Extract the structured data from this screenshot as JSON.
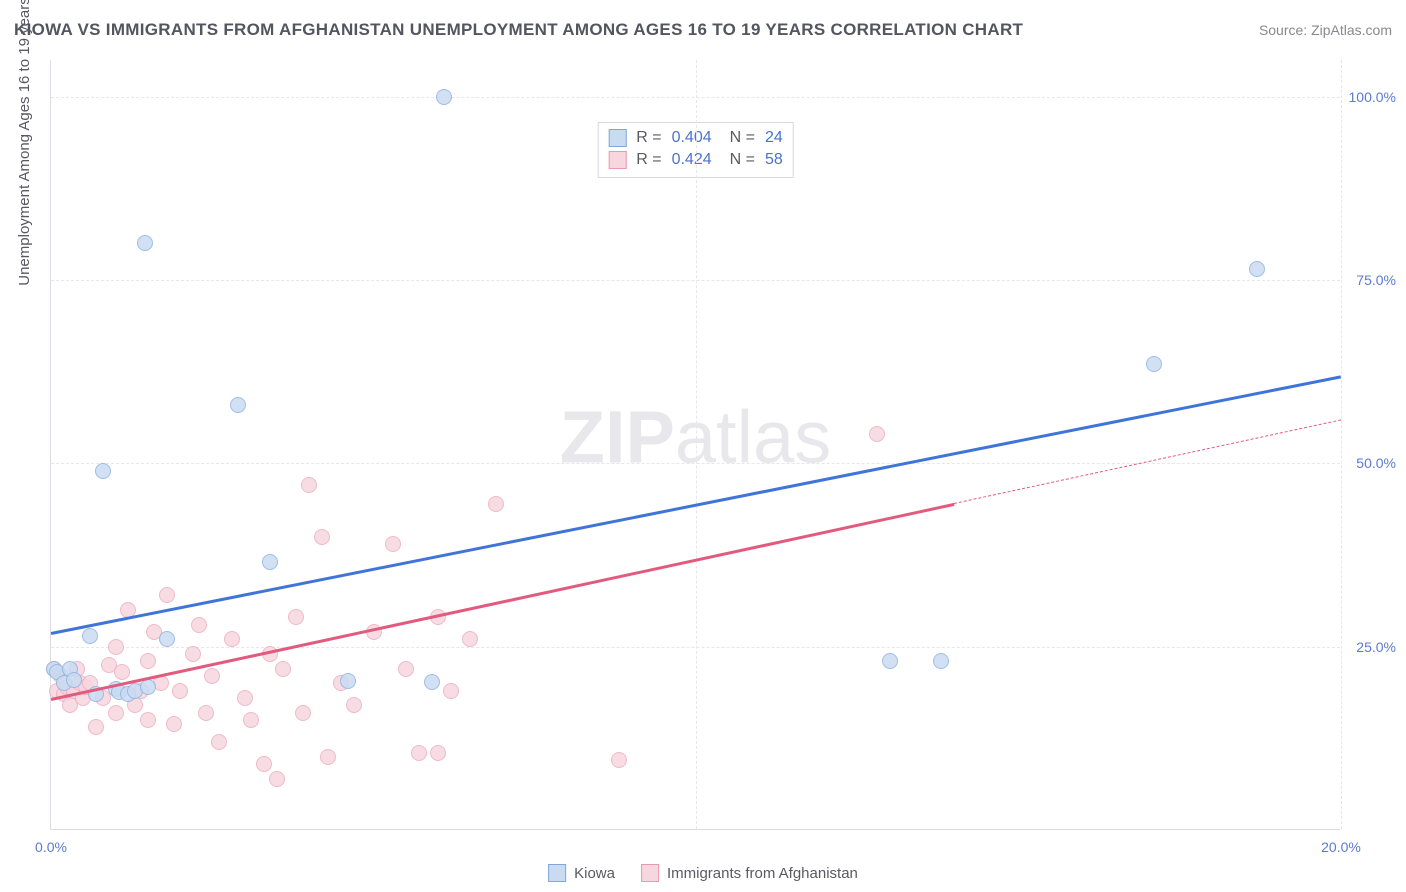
{
  "title": "KIOWA VS IMMIGRANTS FROM AFGHANISTAN UNEMPLOYMENT AMONG AGES 16 TO 19 YEARS CORRELATION CHART",
  "source_label": "Source: ZipAtlas.com",
  "y_axis_label": "Unemployment Among Ages 16 to 19 years",
  "watermark": {
    "bold": "ZIP",
    "light": "atlas"
  },
  "chart": {
    "type": "scatter",
    "background_color": "#ffffff",
    "grid_color": "#e6e6ec",
    "axis_color": "#dcdce2",
    "label_color": "#5a7bd4",
    "xlim": [
      0,
      20
    ],
    "ylim": [
      0,
      105
    ],
    "x_ticks": [
      0,
      10,
      20
    ],
    "x_tick_labels": [
      "0.0%",
      "",
      "20.0%"
    ],
    "y_ticks": [
      25,
      50,
      75,
      100
    ],
    "y_tick_labels": [
      "25.0%",
      "50.0%",
      "75.0%",
      "100.0%"
    ],
    "point_radius": 8,
    "point_stroke_width": 1.2
  },
  "series": [
    {
      "name": "Kiowa",
      "fill": "#c9dbf1",
      "stroke": "#8fb3e2",
      "legend_swatch_fill": "#c9dbf1",
      "legend_swatch_stroke": "#7ea8dc",
      "stats": {
        "R": "0.404",
        "N": "24"
      },
      "trend": {
        "x1": 0,
        "y1": 27,
        "x2": 20,
        "y2": 62,
        "color": "#3f74d8",
        "dash_after_x": null
      },
      "points": [
        [
          0.05,
          22
        ],
        [
          0.1,
          21.5
        ],
        [
          0.2,
          20
        ],
        [
          0.3,
          22
        ],
        [
          0.35,
          20.5
        ],
        [
          0.6,
          26.5
        ],
        [
          0.7,
          18.5
        ],
        [
          0.8,
          49
        ],
        [
          1.0,
          19.2
        ],
        [
          1.05,
          18.8
        ],
        [
          1.2,
          18.5
        ],
        [
          1.3,
          19
        ],
        [
          1.45,
          80
        ],
        [
          1.5,
          19.5
        ],
        [
          1.8,
          26
        ],
        [
          2.9,
          58
        ],
        [
          3.4,
          36.5
        ],
        [
          4.6,
          20.3
        ],
        [
          5.9,
          20.2
        ],
        [
          6.1,
          100
        ],
        [
          13.0,
          23
        ],
        [
          13.8,
          23
        ],
        [
          17.1,
          63.5
        ],
        [
          18.7,
          76.5
        ]
      ]
    },
    {
      "name": "Immigrants from Afghanistan",
      "fill": "#f7d6df",
      "stroke": "#ecaec0",
      "legend_swatch_fill": "#f7d6df",
      "legend_swatch_stroke": "#e89ab2",
      "stats": {
        "R": "0.424",
        "N": "58"
      },
      "trend": {
        "x1": 0,
        "y1": 18,
        "x2": 20,
        "y2": 56,
        "color": "#e25b7e",
        "dash_after_x": 14
      },
      "points": [
        [
          0.05,
          22
        ],
        [
          0.1,
          19
        ],
        [
          0.15,
          21
        ],
        [
          0.2,
          18.5
        ],
        [
          0.25,
          19.5
        ],
        [
          0.3,
          17
        ],
        [
          0.35,
          19
        ],
        [
          0.4,
          22
        ],
        [
          0.45,
          20
        ],
        [
          0.5,
          18
        ],
        [
          0.55,
          19.5
        ],
        [
          0.6,
          20
        ],
        [
          0.7,
          14
        ],
        [
          0.8,
          18
        ],
        [
          0.9,
          22.5
        ],
        [
          1.0,
          25
        ],
        [
          1.0,
          16
        ],
        [
          1.1,
          21.5
        ],
        [
          1.2,
          30
        ],
        [
          1.3,
          17
        ],
        [
          1.4,
          19
        ],
        [
          1.5,
          23
        ],
        [
          1.5,
          15
        ],
        [
          1.6,
          27
        ],
        [
          1.7,
          20
        ],
        [
          1.8,
          32
        ],
        [
          1.9,
          14.5
        ],
        [
          2.0,
          19
        ],
        [
          2.2,
          24
        ],
        [
          2.3,
          28
        ],
        [
          2.4,
          16
        ],
        [
          2.5,
          21
        ],
        [
          2.6,
          12
        ],
        [
          2.8,
          26
        ],
        [
          3.0,
          18
        ],
        [
          3.1,
          15
        ],
        [
          3.3,
          9
        ],
        [
          3.4,
          24
        ],
        [
          3.5,
          7
        ],
        [
          3.6,
          22
        ],
        [
          3.8,
          29
        ],
        [
          3.9,
          16
        ],
        [
          4.0,
          47
        ],
        [
          4.2,
          40
        ],
        [
          4.3,
          10
        ],
        [
          4.5,
          20
        ],
        [
          4.7,
          17
        ],
        [
          5.0,
          27
        ],
        [
          5.3,
          39
        ],
        [
          5.5,
          22
        ],
        [
          5.7,
          10.5
        ],
        [
          6.0,
          29
        ],
        [
          6.0,
          10.5
        ],
        [
          6.2,
          19
        ],
        [
          6.5,
          26
        ],
        [
          6.9,
          44.5
        ],
        [
          8.8,
          9.5
        ],
        [
          12.8,
          54
        ]
      ]
    }
  ],
  "bottom_legend": [
    {
      "label": "Kiowa",
      "fill": "#c9dbf1",
      "stroke": "#7ea8dc"
    },
    {
      "label": "Immigrants from Afghanistan",
      "fill": "#f7d6df",
      "stroke": "#e89ab2"
    }
  ]
}
